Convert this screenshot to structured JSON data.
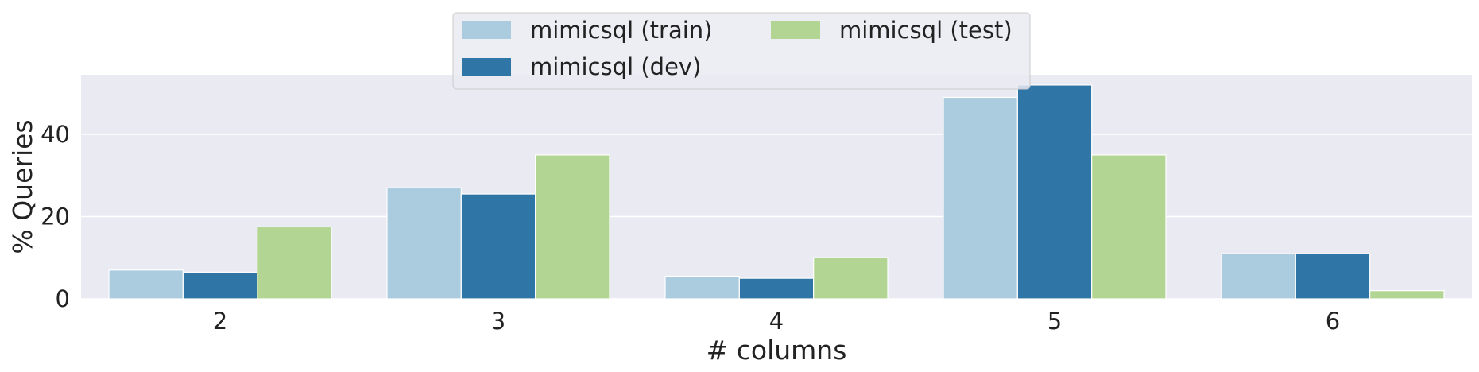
{
  "chart_data": {
    "type": "bar",
    "xlabel": "# columns",
    "ylabel": "% Queries",
    "categories": [
      "2",
      "3",
      "4",
      "5",
      "6"
    ],
    "series": [
      {
        "name": "mimicsql (train)",
        "color": "#abcbdf",
        "values": [
          7,
          27,
          5.5,
          49,
          11
        ]
      },
      {
        "name": "mimicsql (dev)",
        "color": "#2f75a6",
        "values": [
          6.5,
          25.5,
          5,
          52,
          11
        ]
      },
      {
        "name": "mimicsql (test)",
        "color": "#b3d593",
        "values": [
          17.5,
          35,
          10,
          35,
          2
        ]
      }
    ],
    "ylim": [
      0,
      54.5
    ],
    "yticks": [
      0,
      20,
      40
    ],
    "grid": true,
    "legend_position": "top-center",
    "legend_columns": 2,
    "colors": {
      "plot_background": "#eaeaf2",
      "grid": "#ffffff",
      "text": "#222222"
    }
  }
}
